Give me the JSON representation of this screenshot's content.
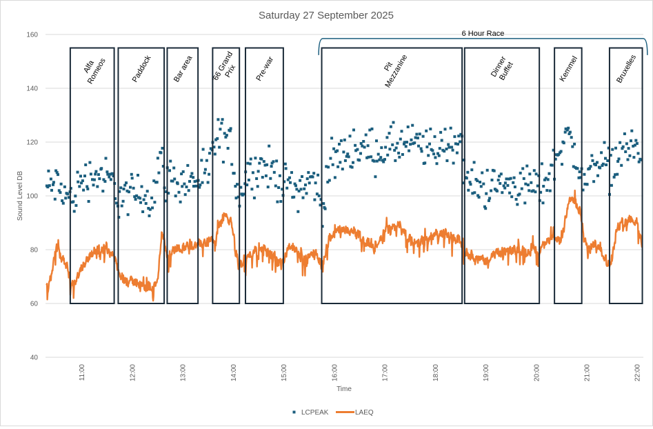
{
  "chart_data": {
    "type": "line+scatter",
    "title": "Saturday 27 September 2025",
    "xlabel": "Time",
    "ylabel": "Sound Level DB",
    "ylim": [
      40,
      160
    ],
    "yticks": [
      40,
      60,
      80,
      100,
      120,
      140,
      160
    ],
    "ytick_labels": [
      "40",
      "60",
      "80",
      "100",
      "120",
      "140",
      "160"
    ],
    "xlim_hours": [
      10.28,
      22.12
    ],
    "xticks_hours": [
      11,
      12,
      13,
      14,
      15,
      16,
      17,
      18,
      19,
      20,
      21,
      22
    ],
    "xtick_labels": [
      "11:00",
      "12:00",
      "13:00",
      "14:00",
      "15:00",
      "16:00",
      "17:00",
      "18:00",
      "19:00",
      "20:00",
      "21:00",
      "22:00"
    ],
    "grid": true,
    "legend_position": "bottom",
    "series": [
      {
        "name": "LCPEAK",
        "style": "scatter",
        "color": "#1b5e7e",
        "profile_hours": [
          10.3,
          10.5,
          10.7,
          10.8,
          11.0,
          11.3,
          11.6,
          11.7,
          11.9,
          12.2,
          12.4,
          12.55,
          12.65,
          12.8,
          13.0,
          13.3,
          13.5,
          13.6,
          13.75,
          13.95,
          14.1,
          14.25,
          14.5,
          14.8,
          15.0,
          15.3,
          15.6,
          15.75,
          15.9,
          16.1,
          16.4,
          16.7,
          17.0,
          17.3,
          17.6,
          17.9,
          18.2,
          18.5,
          18.6,
          18.9,
          19.2,
          19.5,
          19.8,
          20.05,
          20.3,
          20.45,
          20.6,
          20.8,
          20.95,
          21.2,
          21.45,
          21.7,
          21.9,
          22.1
        ],
        "profile_db": [
          103,
          104,
          100,
          98,
          106,
          108,
          105,
          100,
          100,
          101,
          99,
          115,
          106,
          106,
          105,
          106,
          107,
          118,
          122,
          119,
          100,
          107,
          111,
          109,
          104,
          103,
          106,
          96,
          110,
          115,
          118,
          117,
          117,
          119,
          119,
          117,
          119,
          121,
          106,
          103,
          104,
          104,
          104,
          103,
          108,
          118,
          123,
          114,
          103,
          115,
          110,
          116,
          119,
          114
        ],
        "spread_db": 6
      },
      {
        "name": "LAEQ",
        "style": "line",
        "color": "#ed7d31",
        "profile_hours": [
          10.3,
          10.4,
          10.48,
          10.55,
          10.7,
          10.8,
          10.9,
          11.0,
          11.3,
          11.6,
          11.75,
          11.9,
          12.1,
          12.3,
          12.5,
          12.58,
          12.68,
          12.8,
          13.0,
          13.3,
          13.5,
          13.65,
          13.8,
          13.95,
          14.1,
          14.2,
          14.4,
          14.7,
          14.95,
          15.1,
          15.4,
          15.6,
          15.75,
          15.9,
          16.2,
          16.5,
          16.8,
          17.0,
          17.3,
          17.6,
          17.9,
          18.2,
          18.5,
          18.6,
          18.9,
          19.3,
          19.7,
          20.05,
          20.3,
          20.5,
          20.65,
          20.85,
          21.0,
          21.2,
          21.45,
          21.6,
          21.8,
          22.0,
          22.1
        ],
        "profile_db": [
          66,
          70,
          80,
          78,
          74,
          66,
          70,
          74,
          81,
          79,
          70,
          68,
          68,
          65,
          68,
          88,
          78,
          80,
          81,
          82,
          83,
          84,
          93,
          90,
          74,
          75,
          80,
          79,
          74,
          82,
          76,
          80,
          74,
          85,
          88,
          85,
          80,
          87,
          89,
          82,
          85,
          86,
          83,
          79,
          76,
          79,
          80,
          80,
          84,
          83,
          100,
          95,
          80,
          82,
          74,
          88,
          92,
          91,
          80
        ],
        "spread_db": 5
      }
    ],
    "annotations": {
      "boxes": [
        {
          "label": "Alfa Romeos",
          "lines": [
            "Alfa",
            "Romeos"
          ],
          "start_hour": 10.77,
          "end_hour": 11.64,
          "top_db": 155,
          "bottom_db": 60
        },
        {
          "label": "Paddock",
          "lines": [
            "Paddock"
          ],
          "start_hour": 11.72,
          "end_hour": 12.63,
          "top_db": 155,
          "bottom_db": 60
        },
        {
          "label": "Bar area",
          "lines": [
            "Bar area"
          ],
          "start_hour": 12.69,
          "end_hour": 13.3,
          "top_db": 155,
          "bottom_db": 60
        },
        {
          "label": "'66 Grand Prix",
          "lines": [
            "'66 Grand",
            "Prix"
          ],
          "start_hour": 13.59,
          "end_hour": 14.12,
          "top_db": 155,
          "bottom_db": 60
        },
        {
          "label": "Pre-war",
          "lines": [
            "Pre-war"
          ],
          "start_hour": 14.24,
          "end_hour": 14.99,
          "top_db": 155,
          "bottom_db": 60
        },
        {
          "label": "Pit Mezzanine",
          "lines": [
            "Pit",
            "Mezzanine"
          ],
          "start_hour": 15.75,
          "end_hour": 18.53,
          "top_db": 155,
          "bottom_db": 60
        },
        {
          "label": "Dinner Buffet",
          "lines": [
            "Dinner",
            "Buffet"
          ],
          "start_hour": 18.58,
          "end_hour": 20.06,
          "top_db": 155,
          "bottom_db": 60
        },
        {
          "label": "Kemmel",
          "lines": [
            "Kemmel"
          ],
          "start_hour": 20.36,
          "end_hour": 20.9,
          "top_db": 155,
          "bottom_db": 60
        },
        {
          "label": "Bruxelles",
          "lines": [
            "Bruxelles"
          ],
          "start_hour": 21.45,
          "end_hour": 22.1,
          "top_db": 155,
          "bottom_db": 60
        }
      ],
      "bracket": {
        "label": "6 Hour Race",
        "start_hour": 15.69,
        "end_hour": 22.2,
        "db": 158.5,
        "color": "#1b5e7e"
      }
    },
    "box_color": "#1a2a38"
  }
}
